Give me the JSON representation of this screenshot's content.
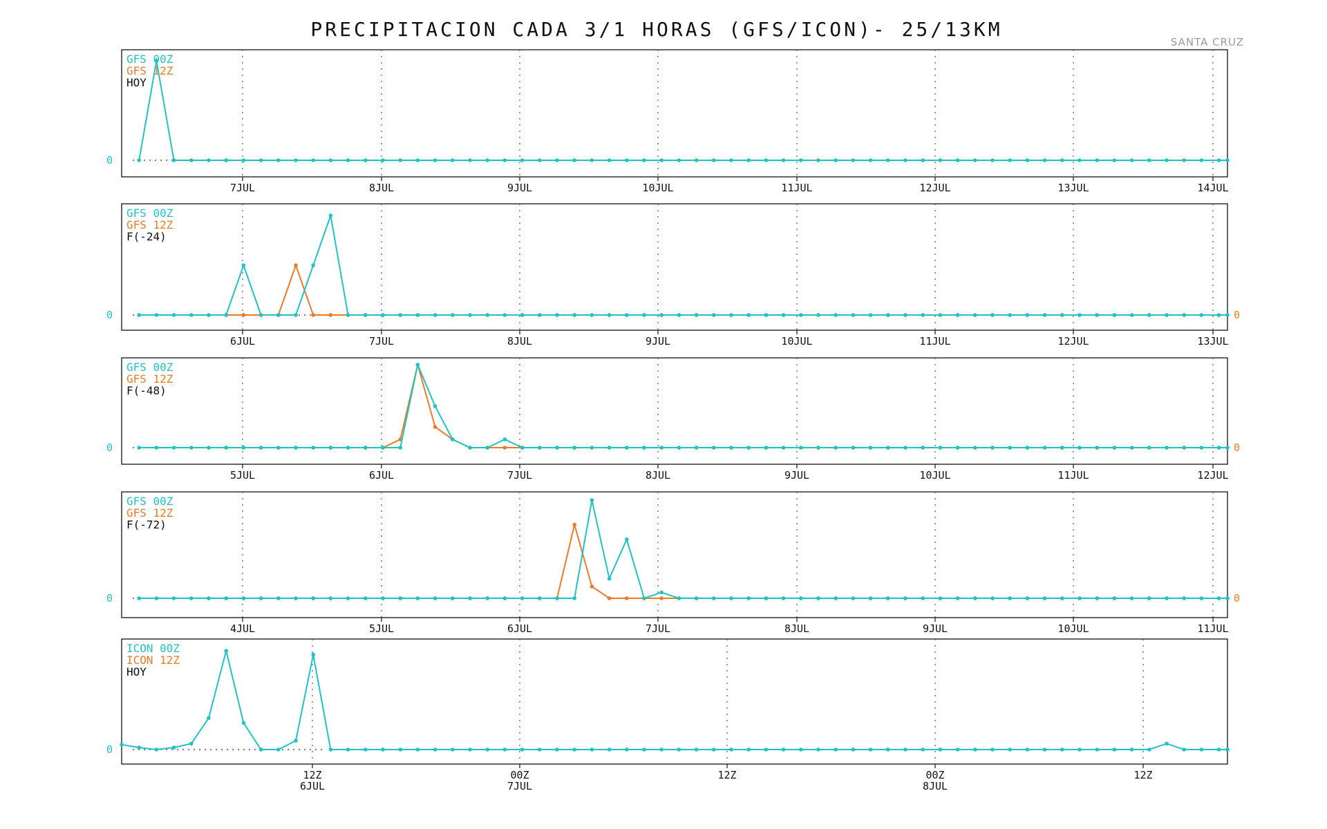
{
  "title": "PRECIPITACION CADA 3/1 HORAS (GFS/ICON)- 25/13KM",
  "location": "SANTA CRUZ",
  "colors": {
    "series_00z": "#1ec3c8",
    "series_12z": "#f07a21",
    "text": "#111111",
    "axis": "#111111"
  },
  "chart_data": [
    {
      "type": "line",
      "legend": [
        "GFS 00Z",
        "GFS 12Z",
        "HOY"
      ],
      "xticks": [
        "7JUL",
        "8JUL",
        "9JUL",
        "10JUL",
        "11JUL",
        "12JUL",
        "13JUL",
        "14JUL"
      ],
      "zero_labels": [
        "0"
      ],
      "series": [
        {
          "start": 1,
          "values": [
            0,
            1,
            0,
            0,
            0,
            0,
            0,
            0,
            0,
            0,
            0,
            0,
            0,
            0,
            0,
            0,
            0,
            0,
            0,
            0,
            0,
            0,
            0,
            0,
            0,
            0,
            0,
            0,
            0,
            0,
            0,
            0,
            0,
            0,
            0,
            0,
            0,
            0,
            0,
            0,
            0,
            0,
            0,
            0,
            0,
            0,
            0,
            0,
            0,
            0,
            0,
            0,
            0,
            0,
            0,
            0,
            0,
            0,
            0,
            0,
            0,
            0,
            0,
            0
          ]
        },
        {
          "start": 1,
          "values": []
        }
      ]
    },
    {
      "type": "line",
      "legend": [
        "GFS 00Z",
        "GFS 12Z",
        "F(-24)"
      ],
      "xticks": [
        "6JUL",
        "7JUL",
        "8JUL",
        "9JUL",
        "10JUL",
        "11JUL",
        "12JUL",
        "13JUL"
      ],
      "zero_labels": [
        "0",
        "0"
      ],
      "series": [
        {
          "start": 1,
          "values": [
            0,
            0,
            0,
            0,
            0,
            0,
            0.5,
            0,
            0,
            0,
            0.5,
            1,
            0,
            0,
            0,
            0,
            0,
            0,
            0,
            0,
            0,
            0,
            0,
            0,
            0,
            0,
            0,
            0,
            0,
            0,
            0,
            0,
            0,
            0,
            0,
            0,
            0,
            0,
            0,
            0,
            0,
            0,
            0,
            0,
            0,
            0,
            0,
            0,
            0,
            0,
            0,
            0,
            0,
            0,
            0,
            0,
            0,
            0,
            0,
            0,
            0,
            0,
            0,
            0
          ]
        },
        {
          "start": 5,
          "values": [
            0,
            0,
            0,
            0,
            0,
            0.5,
            0,
            0,
            0,
            0,
            0,
            0,
            0,
            0,
            0,
            0,
            0,
            0,
            0,
            0,
            0,
            0,
            0,
            0,
            0,
            0,
            0,
            0,
            0,
            0,
            0,
            0,
            0,
            0,
            0,
            0,
            0,
            0,
            0,
            0,
            0,
            0,
            0,
            0,
            0,
            0,
            0,
            0,
            0,
            0,
            0,
            0,
            0,
            0,
            0,
            0,
            0,
            0,
            0,
            0
          ]
        }
      ]
    },
    {
      "type": "line",
      "legend": [
        "GFS 00Z",
        "GFS 12Z",
        "F(-48)"
      ],
      "xticks": [
        "5JUL",
        "6JUL",
        "7JUL",
        "8JUL",
        "9JUL",
        "10JUL",
        "11JUL",
        "12JUL"
      ],
      "zero_labels": [
        "0",
        "0"
      ],
      "series": [
        {
          "start": 1,
          "values": [
            0,
            0,
            0,
            0,
            0,
            0,
            0,
            0,
            0,
            0,
            0,
            0,
            0,
            0,
            0,
            0,
            1,
            0.5,
            0.1,
            0,
            0,
            0.1,
            0,
            0,
            0,
            0,
            0,
            0,
            0,
            0,
            0,
            0,
            0,
            0,
            0,
            0,
            0,
            0,
            0,
            0,
            0,
            0,
            0,
            0,
            0,
            0,
            0,
            0,
            0,
            0,
            0,
            0,
            0,
            0,
            0,
            0,
            0,
            0,
            0,
            0,
            0,
            0,
            0,
            0
          ]
        },
        {
          "start": 5,
          "values": [
            0,
            0,
            0,
            0,
            0,
            0,
            0,
            0,
            0,
            0,
            0,
            0.1,
            1,
            0.25,
            0.1,
            0,
            0,
            0,
            0,
            0,
            0,
            0,
            0,
            0,
            0,
            0,
            0,
            0,
            0,
            0,
            0,
            0,
            0,
            0,
            0,
            0,
            0,
            0,
            0,
            0,
            0,
            0,
            0,
            0,
            0,
            0,
            0,
            0,
            0,
            0,
            0,
            0,
            0,
            0,
            0,
            0,
            0,
            0,
            0,
            0
          ]
        }
      ]
    },
    {
      "type": "line",
      "legend": [
        "GFS 00Z",
        "GFS 12Z",
        "F(-72)"
      ],
      "xticks": [
        "4JUL",
        "5JUL",
        "6JUL",
        "7JUL",
        "8JUL",
        "9JUL",
        "10JUL",
        "11JUL"
      ],
      "zero_labels": [
        "0",
        "0"
      ],
      "series": [
        {
          "start": 1,
          "values": [
            0,
            0,
            0,
            0,
            0,
            0,
            0,
            0,
            0,
            0,
            0,
            0,
            0,
            0,
            0,
            0,
            0,
            0,
            0,
            0,
            0,
            0,
            0,
            0,
            0,
            0,
            1,
            0.2,
            0.6,
            0,
            0.06,
            0,
            0,
            0,
            0,
            0,
            0,
            0,
            0,
            0,
            0,
            0,
            0,
            0,
            0,
            0,
            0,
            0,
            0,
            0,
            0,
            0,
            0,
            0,
            0,
            0,
            0,
            0,
            0,
            0,
            0,
            0,
            0,
            0
          ]
        },
        {
          "start": 5,
          "values": [
            0,
            0,
            0,
            0,
            0,
            0,
            0,
            0,
            0,
            0,
            0,
            0,
            0,
            0,
            0,
            0,
            0,
            0,
            0,
            0,
            0,
            0.75,
            0.12,
            0,
            0,
            0,
            0,
            0,
            0,
            0,
            0,
            0,
            0,
            0,
            0,
            0,
            0,
            0,
            0,
            0,
            0,
            0,
            0,
            0,
            0,
            0,
            0,
            0,
            0,
            0,
            0,
            0,
            0,
            0,
            0,
            0,
            0,
            0,
            0,
            0
          ]
        }
      ]
    },
    {
      "type": "line",
      "legend": [
        "ICON 00Z",
        "ICON 12Z",
        "HOY"
      ],
      "xticks": [
        "12Z\n6JUL",
        "00Z\n7JUL",
        "12Z",
        "00Z\n8JUL",
        "12Z"
      ],
      "zero_labels": [
        "0"
      ],
      "series": [
        {
          "start": 0,
          "values": [
            0.05,
            0.02,
            0,
            0.02,
            0.06,
            0.32,
            1,
            0.27,
            0,
            0,
            0.09,
            0.96,
            0,
            0,
            0,
            0,
            0,
            0,
            0,
            0,
            0,
            0,
            0,
            0,
            0,
            0,
            0,
            0,
            0,
            0,
            0,
            0,
            0,
            0,
            0,
            0,
            0,
            0,
            0,
            0,
            0,
            0,
            0,
            0,
            0,
            0,
            0,
            0,
            0,
            0,
            0,
            0,
            0,
            0,
            0,
            0,
            0,
            0,
            0,
            0,
            0.06,
            0,
            0,
            0,
            0,
            0
          ]
        },
        {
          "start": 0,
          "values": []
        }
      ]
    }
  ]
}
